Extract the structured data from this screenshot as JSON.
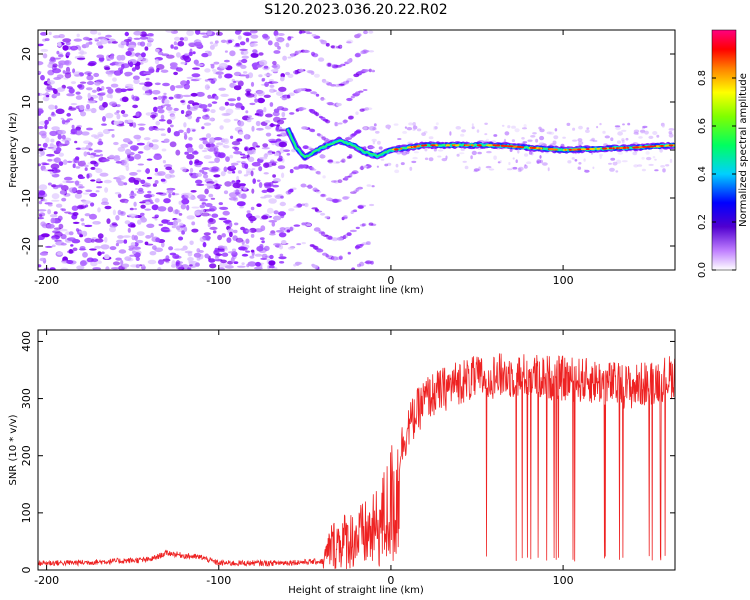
{
  "title": "S120.2023.036.20.22.R02",
  "colors": {
    "speckle": "#8a2be2",
    "snr_line": "#ee2222",
    "frame": "#000000"
  },
  "chart_data": [
    {
      "type": "heatmap",
      "xlabel": "Height of straight line (km)",
      "ylabel": "Frequency (Hz)",
      "xlim": [
        -205,
        165
      ],
      "ylim": [
        -25,
        25
      ],
      "xticks": [
        -200,
        -100,
        0,
        100
      ],
      "xtick_labels": [
        "-200",
        "-100",
        "0",
        "100"
      ],
      "yticks": [
        -20,
        -10,
        0,
        10,
        20
      ],
      "ytick_labels": [
        "-20",
        "-10",
        "0",
        "10",
        "20"
      ],
      "colormap": "rainbow (violet to magenta)",
      "colorbar": {
        "label": "Normalized spectral amplitude",
        "range": [
          0,
          1
        ],
        "ticks": [
          0.0,
          0.2,
          0.4,
          0.6,
          0.8
        ],
        "tick_labels": [
          "0.0",
          "0.2",
          "0.4",
          "0.6",
          "0.8"
        ]
      },
      "regions": [
        {
          "name": "noise",
          "x_range": [
            -205,
            -60
          ],
          "freq_range": [
            -25,
            25
          ],
          "amplitude": 0.1
        },
        {
          "name": "transition",
          "x_range": [
            -60,
            -10
          ],
          "freq_range": [
            -25,
            25
          ],
          "amplitude": 0.15
        },
        {
          "name": "signal",
          "x_range": [
            -10,
            165
          ],
          "freq_center": 0.5,
          "amplitude": 0.9
        }
      ],
      "ridge": [
        {
          "x": -60,
          "f": 4.5
        },
        {
          "x": -55,
          "f": 0.5
        },
        {
          "x": -50,
          "f": -1.5
        },
        {
          "x": -40,
          "f": 0.5
        },
        {
          "x": -30,
          "f": 2.0
        },
        {
          "x": -22,
          "f": 1.0
        },
        {
          "x": -15,
          "f": -0.5
        },
        {
          "x": -8,
          "f": -1.3
        },
        {
          "x": 0,
          "f": 0.0
        },
        {
          "x": 20,
          "f": 1.0
        },
        {
          "x": 60,
          "f": 1.0
        },
        {
          "x": 100,
          "f": 0.0
        },
        {
          "x": 140,
          "f": 0.5
        },
        {
          "x": 165,
          "f": 1.0
        }
      ]
    },
    {
      "type": "line",
      "xlabel": "Height of straight line (km)",
      "ylabel": "SNR (10 * v/v)",
      "xlim": [
        -205,
        165
      ],
      "ylim": [
        0,
        420
      ],
      "xticks": [
        -200,
        -100,
        0,
        100
      ],
      "xtick_labels": [
        "-200",
        "-100",
        "0",
        "100"
      ],
      "yticks": [
        0,
        100,
        200,
        300,
        400
      ],
      "ytick_labels": [
        "0",
        "100",
        "200",
        "300",
        "400"
      ],
      "series": [
        {
          "x": [
            -205,
            -180,
            -140,
            -130,
            -120,
            -110,
            -100,
            -70,
            -40,
            -35,
            -30,
            -20,
            -10,
            -5,
            0,
            10,
            20,
            40,
            60,
            80,
            100,
            120,
            140,
            165
          ],
          "y": [
            12,
            13,
            18,
            30,
            25,
            22,
            12,
            12,
            15,
            60,
            70,
            80,
            95,
            120,
            160,
            250,
            300,
            330,
            340,
            340,
            335,
            330,
            320,
            340
          ]
        }
      ]
    }
  ]
}
